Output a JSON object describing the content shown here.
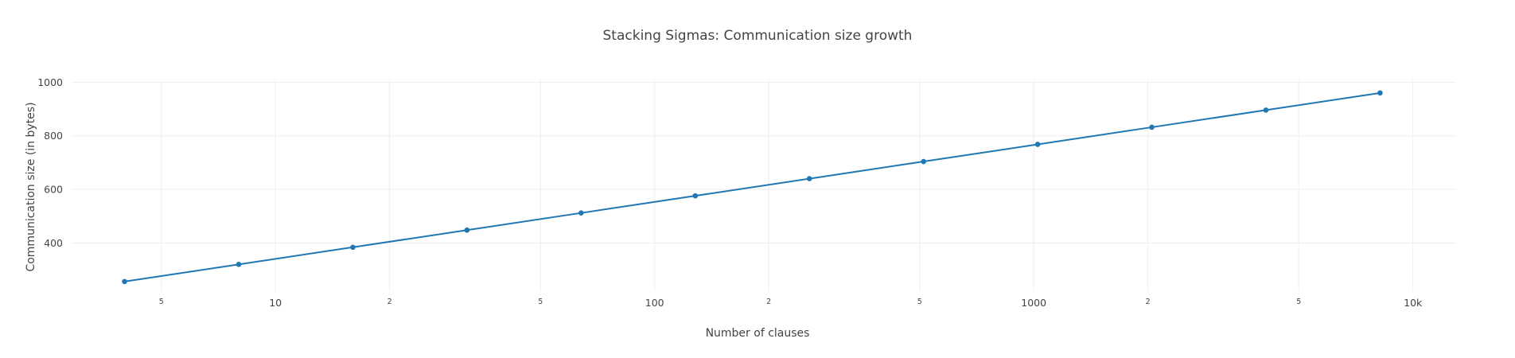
{
  "chart_data": {
    "type": "line",
    "title": "Stacking Sigmas: Communication size growth",
    "xlabel": "Number of clauses",
    "ylabel": "Communication size (in bytes)",
    "x_scale": "log",
    "xlim": [
      2.9,
      13000
    ],
    "ylim": [
      220,
      1010
    ],
    "grid": true,
    "legend": "none",
    "x": [
      4,
      8,
      16,
      32,
      64,
      128,
      256,
      512,
      1024,
      2048,
      4096,
      8192
    ],
    "series": [
      {
        "values": [
          256,
          320,
          384,
          448,
          512,
          576,
          640,
          704,
          768,
          832,
          896,
          960
        ]
      }
    ],
    "x_major_ticks": [
      {
        "value": 10,
        "label": "10"
      },
      {
        "value": 100,
        "label": "100"
      },
      {
        "value": 1000,
        "label": "1000"
      },
      {
        "value": 10000,
        "label": "10k"
      }
    ],
    "x_minor_ticks": [
      {
        "value": 5,
        "label": "5"
      },
      {
        "value": 20,
        "label": "2"
      },
      {
        "value": 50,
        "label": "5"
      },
      {
        "value": 200,
        "label": "2"
      },
      {
        "value": 500,
        "label": "5"
      },
      {
        "value": 2000,
        "label": "2"
      },
      {
        "value": 5000,
        "label": "5"
      }
    ],
    "y_ticks": [
      {
        "value": 400,
        "label": "400"
      },
      {
        "value": 600,
        "label": "600"
      },
      {
        "value": 800,
        "label": "800"
      },
      {
        "value": 1000,
        "label": "1000"
      }
    ],
    "colors": {
      "line": "#1f77b4",
      "grid": "#eeeeee",
      "text": "#444444"
    }
  }
}
